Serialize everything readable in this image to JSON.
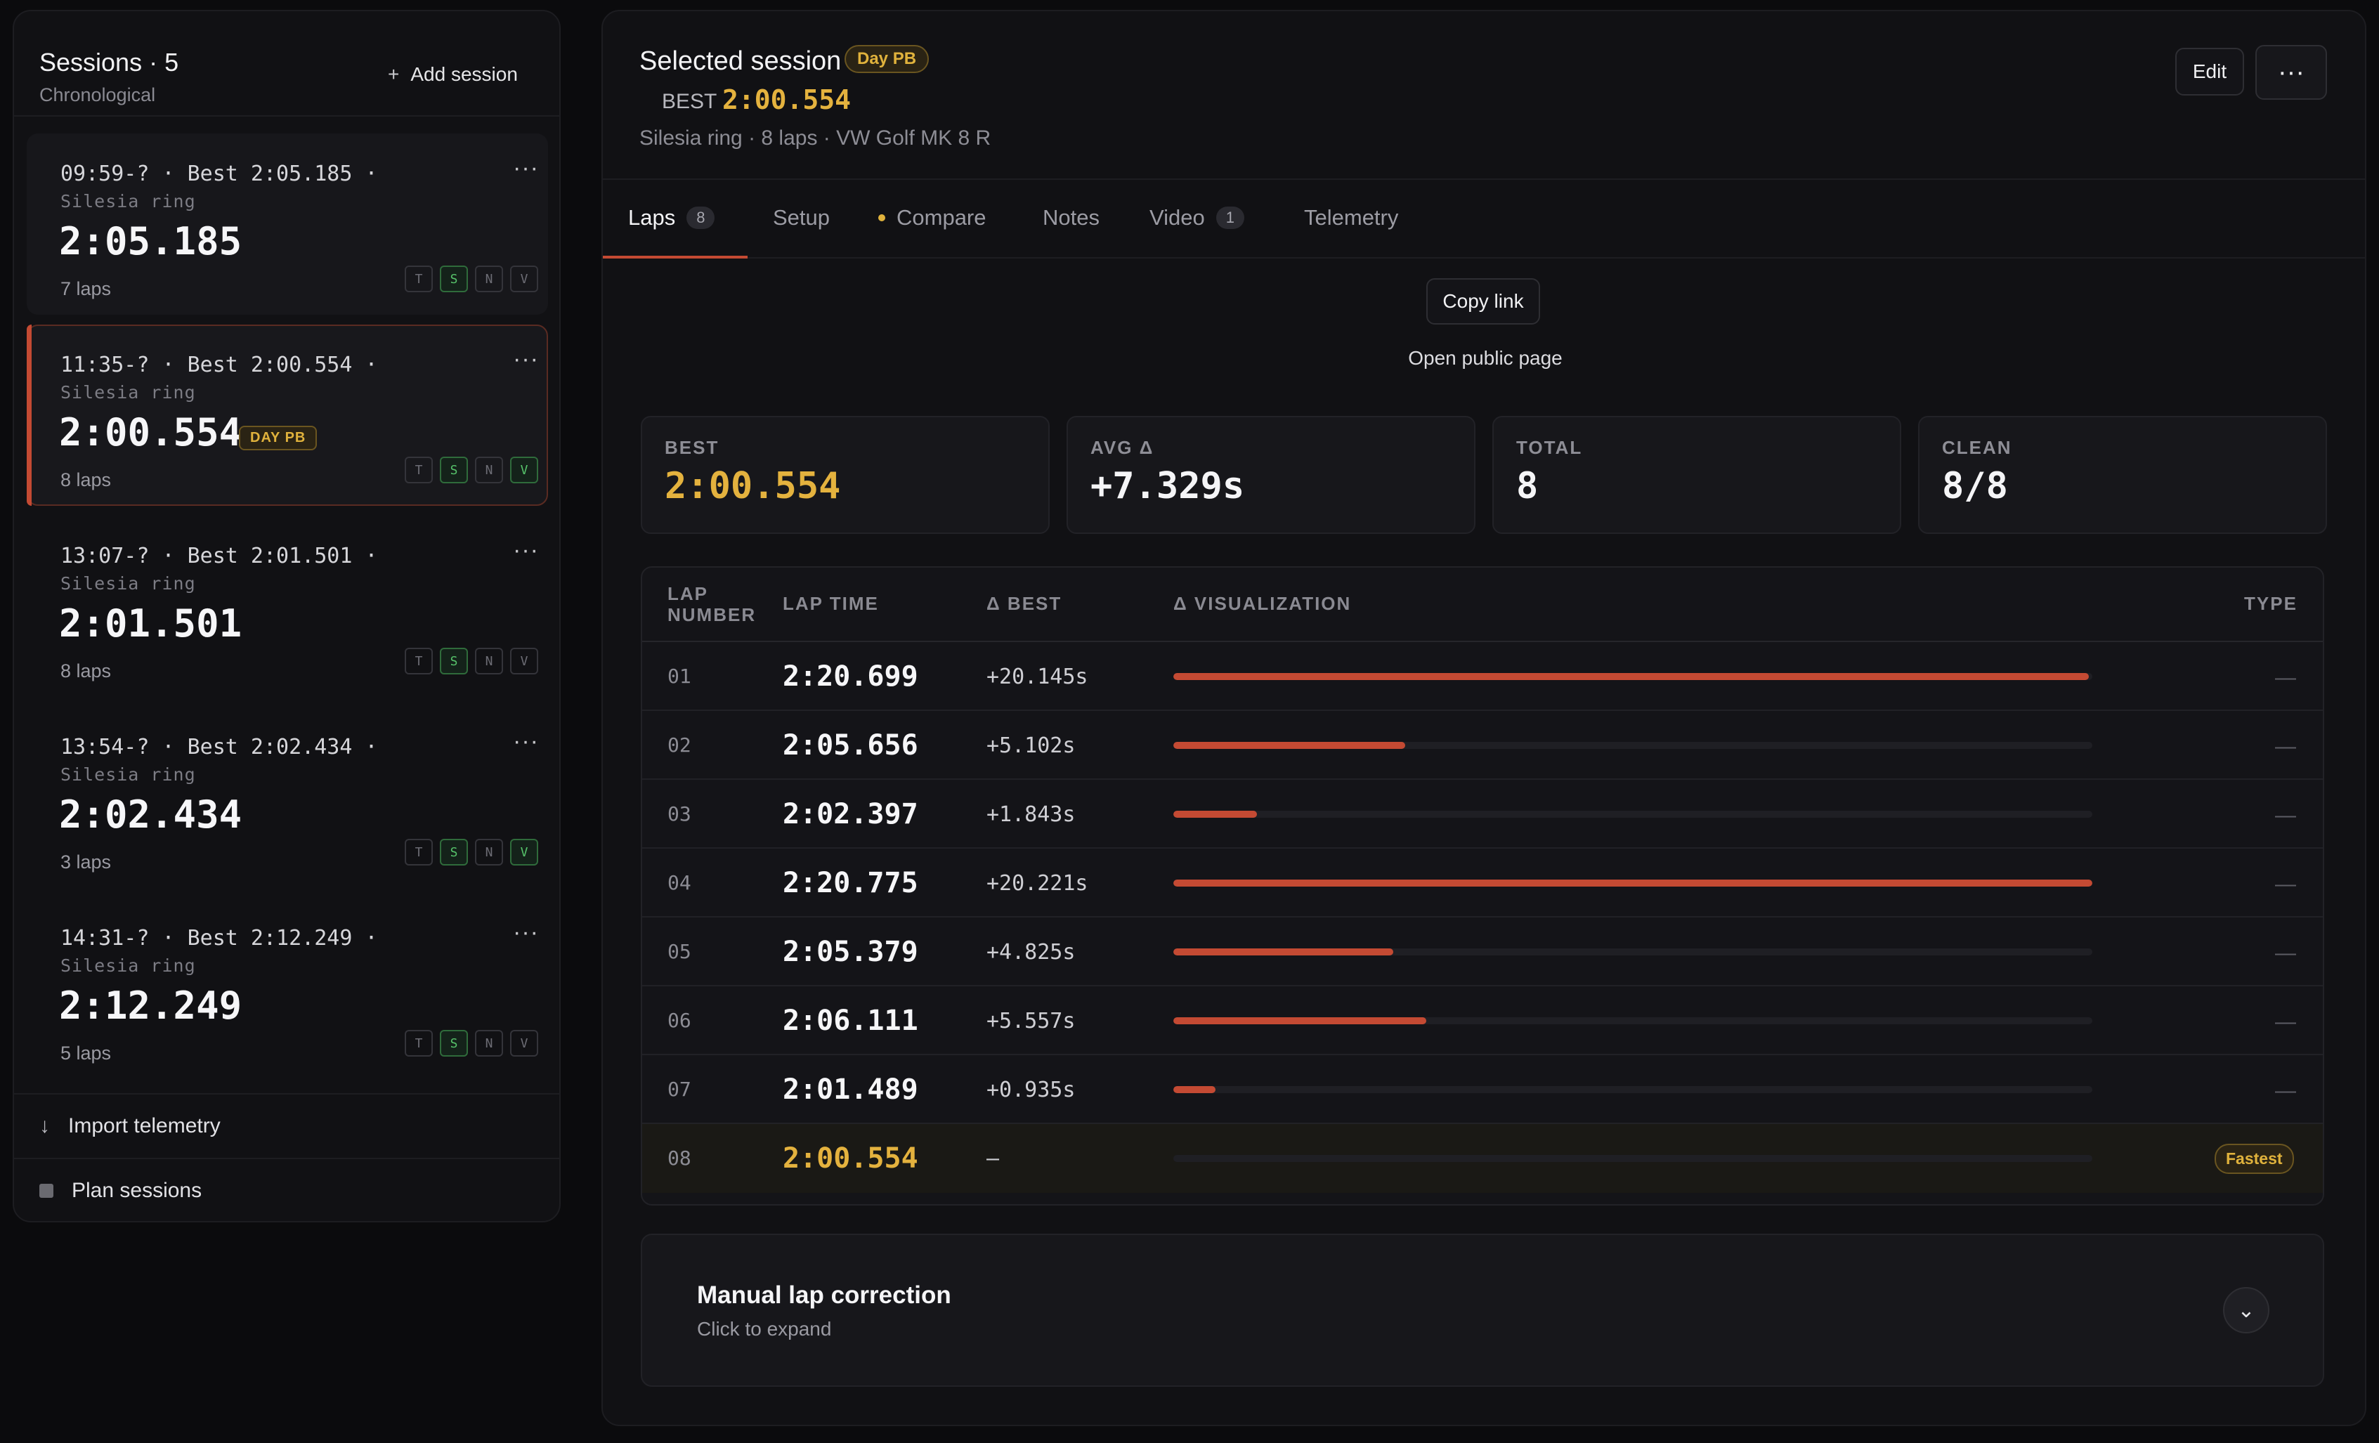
{
  "sidebar": {
    "title": "Sessions · 5",
    "subtitle": "Chronological",
    "add_label": "Add session",
    "add_icon": "+",
    "sessions": [
      {
        "head": "09:59-? · Best 2:05.185 ·",
        "track": "Silesia ring",
        "time": "2:05.185",
        "laps": "7 laps",
        "badge": "",
        "flags": {
          "T": false,
          "S": true,
          "N": false,
          "V": false
        }
      },
      {
        "head": "11:35-? · Best 2:00.554 ·",
        "track": "Silesia ring",
        "time": "2:00.554",
        "laps": "8 laps",
        "badge": "DAY PB",
        "flags": {
          "T": false,
          "S": true,
          "N": false,
          "V": true
        }
      },
      {
        "head": "13:07-? · Best 2:01.501 ·",
        "track": "Silesia ring",
        "time": "2:01.501",
        "laps": "8 laps",
        "badge": "",
        "flags": {
          "T": false,
          "S": true,
          "N": false,
          "V": false
        }
      },
      {
        "head": "13:54-? · Best 2:02.434 ·",
        "track": "Silesia ring",
        "time": "2:02.434",
        "laps": "3 laps",
        "badge": "",
        "flags": {
          "T": false,
          "S": true,
          "N": false,
          "V": true
        }
      },
      {
        "head": "14:31-? · Best 2:12.249 ·",
        "track": "Silesia ring",
        "time": "2:12.249",
        "laps": "5 laps",
        "badge": "",
        "flags": {
          "T": false,
          "S": true,
          "N": false,
          "V": false
        }
      }
    ],
    "more_icon": "···",
    "import_label": "Import telemetry",
    "import_icon": "↓",
    "plan_label": "Plan sessions"
  },
  "header": {
    "title": "Selected session",
    "badge": "Day PB",
    "best_label": "BEST",
    "best_value": "2:00.554",
    "meta": "Silesia ring · 8 laps · VW Golf MK 8 R",
    "edit_label": "Edit",
    "more_icon": "···"
  },
  "tabs": [
    {
      "label": "Laps",
      "count": "8"
    },
    {
      "label": "Setup",
      "count": ""
    },
    {
      "label": "Compare",
      "count": ""
    },
    {
      "label": "Notes",
      "count": ""
    },
    {
      "label": "Video",
      "count": "1"
    },
    {
      "label": "Telemetry",
      "count": ""
    }
  ],
  "share": {
    "copy_label": "Copy link",
    "public_label": "Open public page"
  },
  "stats": [
    {
      "label": "BEST",
      "value": "2:00.554"
    },
    {
      "label": "AVG Δ",
      "value": "+7.329s"
    },
    {
      "label": "TOTAL",
      "value": "8"
    },
    {
      "label": "CLEAN",
      "value": "8/8"
    }
  ],
  "table": {
    "columns": {
      "lap": "LAP NUMBER",
      "lap_line1": "LAP",
      "lap_line2": "NUMBER",
      "time": "LAP TIME",
      "delta": "Δ BEST",
      "viz": "Δ VISUALIZATION",
      "type": "TYPE"
    },
    "rows": [
      {
        "num": "01",
        "time": "2:20.699",
        "delta": "+20.145s",
        "type": "—",
        "bar_pct": 99.6
      },
      {
        "num": "02",
        "time": "2:05.656",
        "delta": "+5.102s",
        "type": "—",
        "bar_pct": 25.2
      },
      {
        "num": "03",
        "time": "2:02.397",
        "delta": "+1.843s",
        "type": "—",
        "bar_pct": 9.1
      },
      {
        "num": "04",
        "time": "2:20.775",
        "delta": "+20.221s",
        "type": "—",
        "bar_pct": 100
      },
      {
        "num": "05",
        "time": "2:05.379",
        "delta": "+4.825s",
        "type": "—",
        "bar_pct": 23.9
      },
      {
        "num": "06",
        "time": "2:06.111",
        "delta": "+5.557s",
        "type": "—",
        "bar_pct": 27.5
      },
      {
        "num": "07",
        "time": "2:01.489",
        "delta": "+0.935s",
        "type": "—",
        "bar_pct": 4.6
      },
      {
        "num": "08",
        "time": "2:00.554",
        "delta": "—",
        "type": "Fastest",
        "bar_pct": 0
      }
    ]
  },
  "correction": {
    "title": "Manual lap correction",
    "subtitle": "Click to expand",
    "chevron_icon": "⌄"
  },
  "colors": {
    "accent_red": "#c44a33",
    "gold": "#e4b23e",
    "flag_green": "#56c26a"
  }
}
